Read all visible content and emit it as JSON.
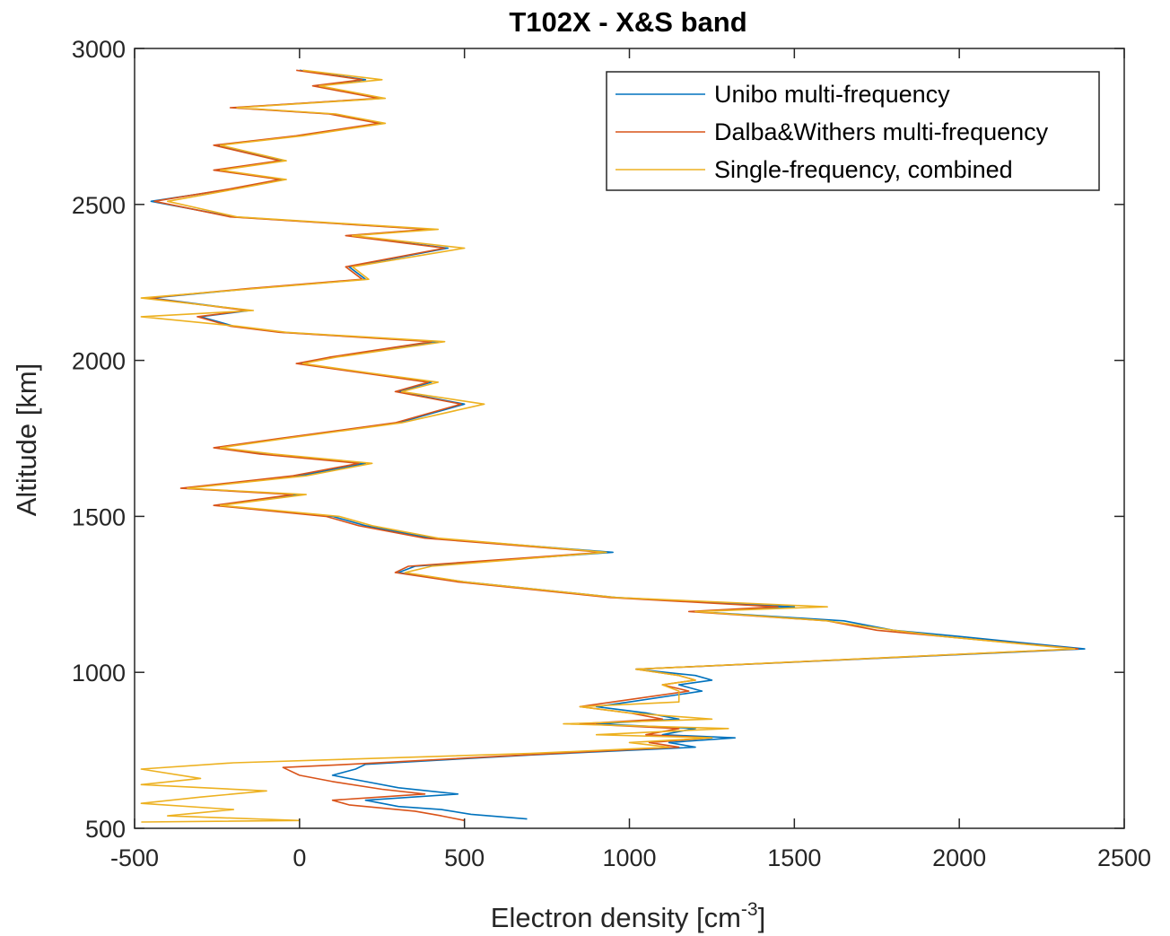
{
  "chart_data": {
    "type": "line",
    "title": "T102X - X&S band",
    "xlabel": "Electron density [cm",
    "xlabel_sup": "-3",
    "xlabel_suffix": "]",
    "ylabel": "Altitude [km]",
    "xlim": [
      -500,
      2500
    ],
    "ylim": [
      500,
      3000
    ],
    "xticks": [
      -500,
      0,
      500,
      1000,
      1500,
      2000,
      2500
    ],
    "yticks": [
      500,
      1000,
      1500,
      2000,
      2500,
      3000
    ],
    "grid": false,
    "legend_position": "top-right",
    "series": [
      {
        "name": "Unibo multi-frequency",
        "color": "#0072BD",
        "points": [
          [
            690,
            530
          ],
          [
            520,
            545
          ],
          [
            430,
            560
          ],
          [
            300,
            570
          ],
          [
            200,
            590
          ],
          [
            480,
            610
          ],
          [
            300,
            630
          ],
          [
            200,
            650
          ],
          [
            100,
            670
          ],
          [
            170,
            690
          ],
          [
            200,
            705
          ],
          [
            700,
            735
          ],
          [
            1200,
            760
          ],
          [
            1120,
            775
          ],
          [
            1320,
            790
          ],
          [
            1100,
            800
          ],
          [
            1200,
            820
          ],
          [
            900,
            835
          ],
          [
            1150,
            850
          ],
          [
            1050,
            870
          ],
          [
            900,
            890
          ],
          [
            1000,
            905
          ],
          [
            1220,
            940
          ],
          [
            1150,
            960
          ],
          [
            1250,
            975
          ],
          [
            1200,
            990
          ],
          [
            1020,
            1010
          ],
          [
            2380,
            1075
          ],
          [
            2000,
            1115
          ],
          [
            1800,
            1135
          ],
          [
            1650,
            1165
          ],
          [
            1200,
            1195
          ],
          [
            1500,
            1210
          ],
          [
            960,
            1240
          ],
          [
            500,
            1290
          ],
          [
            300,
            1320
          ],
          [
            350,
            1340
          ],
          [
            950,
            1385
          ],
          [
            400,
            1430
          ],
          [
            200,
            1470
          ],
          [
            100,
            1500
          ],
          [
            -250,
            1535
          ],
          [
            0,
            1570
          ],
          [
            -350,
            1590
          ],
          [
            0,
            1630
          ],
          [
            200,
            1670
          ],
          [
            -100,
            1700
          ],
          [
            -250,
            1720
          ],
          [
            -50,
            1750
          ],
          [
            300,
            1800
          ],
          [
            500,
            1860
          ],
          [
            300,
            1900
          ],
          [
            400,
            1930
          ],
          [
            200,
            1960
          ],
          [
            0,
            1990
          ],
          [
            100,
            2010
          ],
          [
            420,
            2060
          ],
          [
            -50,
            2090
          ],
          [
            -200,
            2110
          ],
          [
            -300,
            2140
          ],
          [
            -150,
            2160
          ],
          [
            -450,
            2200
          ],
          [
            -150,
            2230
          ],
          [
            200,
            2260
          ],
          [
            150,
            2300
          ],
          [
            450,
            2360
          ],
          [
            150,
            2400
          ],
          [
            400,
            2420
          ],
          [
            -200,
            2460
          ],
          [
            -450,
            2510
          ],
          [
            -200,
            2550
          ],
          [
            -50,
            2580
          ],
          [
            -250,
            2610
          ],
          [
            -50,
            2640
          ],
          [
            -250,
            2690
          ],
          [
            0,
            2720
          ],
          [
            250,
            2760
          ],
          [
            100,
            2790
          ],
          [
            -200,
            2810
          ],
          [
            250,
            2840
          ],
          [
            50,
            2880
          ],
          [
            200,
            2900
          ],
          [
            0,
            2930
          ]
        ]
      },
      {
        "name": "Dalba&Withers multi-frequency",
        "color": "#D95319",
        "points": [
          [
            500,
            525
          ],
          [
            430,
            540
          ],
          [
            350,
            555
          ],
          [
            150,
            575
          ],
          [
            100,
            590
          ],
          [
            380,
            610
          ],
          [
            250,
            625
          ],
          [
            100,
            650
          ],
          [
            0,
            670
          ],
          [
            -50,
            695
          ],
          [
            150,
            705
          ],
          [
            680,
            735
          ],
          [
            1150,
            760
          ],
          [
            1060,
            775
          ],
          [
            1250,
            790
          ],
          [
            1050,
            800
          ],
          [
            1150,
            820
          ],
          [
            850,
            835
          ],
          [
            1100,
            850
          ],
          [
            1000,
            870
          ],
          [
            850,
            890
          ],
          [
            950,
            905
          ],
          [
            1180,
            940
          ],
          [
            1100,
            960
          ],
          [
            1200,
            975
          ],
          [
            1150,
            990
          ],
          [
            1020,
            1010
          ],
          [
            2360,
            1075
          ],
          [
            1950,
            1115
          ],
          [
            1750,
            1135
          ],
          [
            1600,
            1165
          ],
          [
            1180,
            1195
          ],
          [
            1450,
            1210
          ],
          [
            940,
            1240
          ],
          [
            480,
            1290
          ],
          [
            290,
            1320
          ],
          [
            330,
            1340
          ],
          [
            920,
            1385
          ],
          [
            380,
            1430
          ],
          [
            180,
            1470
          ],
          [
            80,
            1500
          ],
          [
            -260,
            1535
          ],
          [
            -20,
            1570
          ],
          [
            -360,
            1590
          ],
          [
            -20,
            1630
          ],
          [
            180,
            1670
          ],
          [
            -120,
            1700
          ],
          [
            -260,
            1720
          ],
          [
            -60,
            1750
          ],
          [
            290,
            1800
          ],
          [
            490,
            1860
          ],
          [
            290,
            1900
          ],
          [
            390,
            1930
          ],
          [
            190,
            1960
          ],
          [
            -10,
            1990
          ],
          [
            90,
            2010
          ],
          [
            400,
            2060
          ],
          [
            -60,
            2090
          ],
          [
            -210,
            2110
          ],
          [
            -310,
            2140
          ],
          [
            -160,
            2160
          ],
          [
            -460,
            2200
          ],
          [
            -160,
            2230
          ],
          [
            190,
            2260
          ],
          [
            140,
            2300
          ],
          [
            440,
            2360
          ],
          [
            140,
            2400
          ],
          [
            390,
            2420
          ],
          [
            -210,
            2460
          ],
          [
            -440,
            2510
          ],
          [
            -210,
            2550
          ],
          [
            -60,
            2580
          ],
          [
            -260,
            2610
          ],
          [
            -60,
            2640
          ],
          [
            -260,
            2690
          ],
          [
            -10,
            2720
          ],
          [
            240,
            2760
          ],
          [
            90,
            2790
          ],
          [
            -210,
            2810
          ],
          [
            240,
            2840
          ],
          [
            40,
            2880
          ],
          [
            190,
            2900
          ],
          [
            -10,
            2930
          ]
        ]
      },
      {
        "name": "Single-frequency, combined",
        "color": "#EDB120",
        "points": [
          [
            -480,
            520
          ],
          [
            0,
            525
          ],
          [
            -400,
            540
          ],
          [
            -200,
            560
          ],
          [
            -480,
            580
          ],
          [
            -300,
            600
          ],
          [
            -100,
            620
          ],
          [
            -480,
            640
          ],
          [
            -300,
            660
          ],
          [
            -480,
            690
          ],
          [
            -200,
            710
          ],
          [
            700,
            740
          ],
          [
            1120,
            760
          ],
          [
            1000,
            775
          ],
          [
            1250,
            790
          ],
          [
            900,
            800
          ],
          [
            1300,
            820
          ],
          [
            800,
            835
          ],
          [
            1250,
            850
          ],
          [
            1000,
            870
          ],
          [
            850,
            890
          ],
          [
            1150,
            905
          ],
          [
            1150,
            940
          ],
          [
            1100,
            960
          ],
          [
            1200,
            975
          ],
          [
            1150,
            990
          ],
          [
            1020,
            1010
          ],
          [
            2350,
            1075
          ],
          [
            1950,
            1115
          ],
          [
            1800,
            1135
          ],
          [
            1600,
            1165
          ],
          [
            1200,
            1195
          ],
          [
            1600,
            1210
          ],
          [
            960,
            1240
          ],
          [
            500,
            1290
          ],
          [
            320,
            1320
          ],
          [
            400,
            1340
          ],
          [
            930,
            1385
          ],
          [
            420,
            1430
          ],
          [
            220,
            1470
          ],
          [
            120,
            1500
          ],
          [
            -240,
            1535
          ],
          [
            20,
            1570
          ],
          [
            -340,
            1590
          ],
          [
            20,
            1630
          ],
          [
            220,
            1670
          ],
          [
            -80,
            1700
          ],
          [
            -240,
            1720
          ],
          [
            -40,
            1750
          ],
          [
            310,
            1800
          ],
          [
            560,
            1860
          ],
          [
            310,
            1900
          ],
          [
            420,
            1930
          ],
          [
            210,
            1960
          ],
          [
            10,
            1990
          ],
          [
            110,
            2010
          ],
          [
            440,
            2060
          ],
          [
            -40,
            2090
          ],
          [
            -190,
            2110
          ],
          [
            -480,
            2140
          ],
          [
            -140,
            2160
          ],
          [
            -480,
            2200
          ],
          [
            -140,
            2230
          ],
          [
            210,
            2260
          ],
          [
            160,
            2300
          ],
          [
            500,
            2360
          ],
          [
            160,
            2400
          ],
          [
            420,
            2420
          ],
          [
            -190,
            2460
          ],
          [
            -400,
            2510
          ],
          [
            -190,
            2550
          ],
          [
            -40,
            2580
          ],
          [
            -240,
            2610
          ],
          [
            -40,
            2640
          ],
          [
            -240,
            2690
          ],
          [
            10,
            2720
          ],
          [
            260,
            2760
          ],
          [
            110,
            2790
          ],
          [
            -190,
            2810
          ],
          [
            260,
            2840
          ],
          [
            60,
            2880
          ],
          [
            250,
            2900
          ],
          [
            10,
            2930
          ]
        ]
      }
    ]
  }
}
